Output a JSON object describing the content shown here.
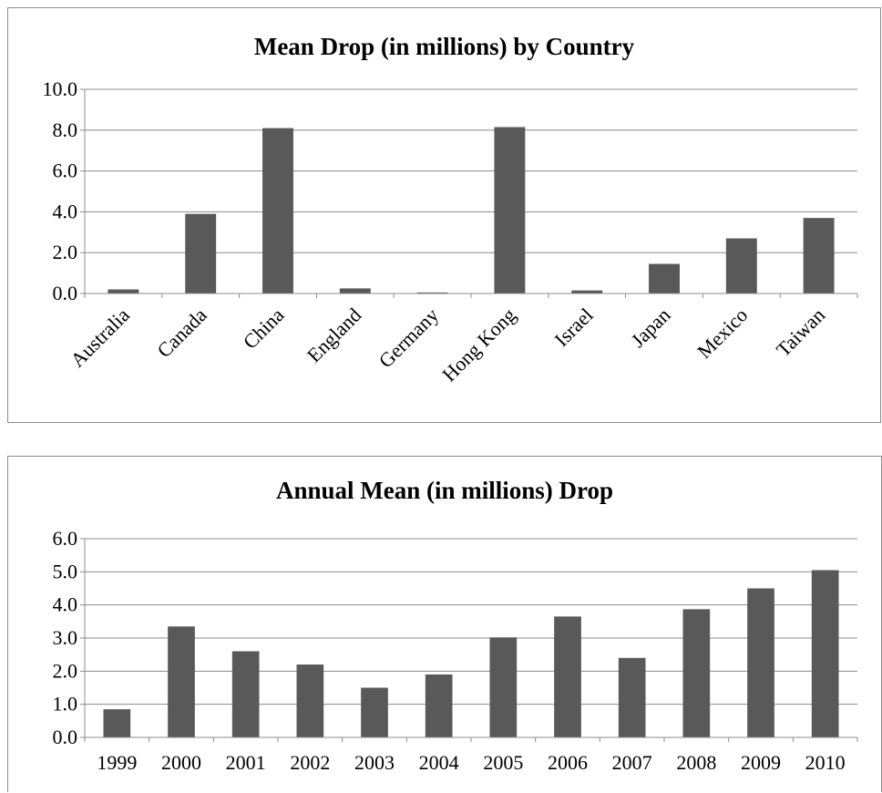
{
  "chart_data": [
    {
      "type": "bar",
      "title": "Mean Drop (in millions) by Country",
      "xlabel": "",
      "ylabel": "",
      "categories": [
        "Australia",
        "Canada",
        "China",
        "England",
        "Germany",
        "Hong Kong",
        "Israel",
        "Japan",
        "Mexico",
        "Taiwan"
      ],
      "values": [
        0.2,
        3.9,
        8.1,
        0.25,
        0.05,
        8.15,
        0.15,
        1.45,
        2.7,
        3.7
      ],
      "ylim": [
        0,
        10
      ],
      "yticks": [
        "0.0",
        "2.0",
        "4.0",
        "6.0",
        "8.0",
        "10.0"
      ],
      "grid": true,
      "bar_color": "#595959"
    },
    {
      "type": "bar",
      "title": "Annual Mean (in millions) Drop",
      "xlabel": "",
      "ylabel": "",
      "categories": [
        "1999",
        "2000",
        "2001",
        "2002",
        "2003",
        "2004",
        "2005",
        "2006",
        "2007",
        "2008",
        "2009",
        "2010"
      ],
      "values": [
        0.85,
        3.35,
        2.6,
        2.2,
        1.5,
        1.9,
        3.02,
        3.65,
        2.4,
        3.87,
        4.5,
        5.05
      ],
      "ylim": [
        0,
        6
      ],
      "yticks": [
        "0.0",
        "1.0",
        "2.0",
        "3.0",
        "4.0",
        "5.0",
        "6.0"
      ],
      "grid": true,
      "bar_color": "#595959"
    }
  ]
}
